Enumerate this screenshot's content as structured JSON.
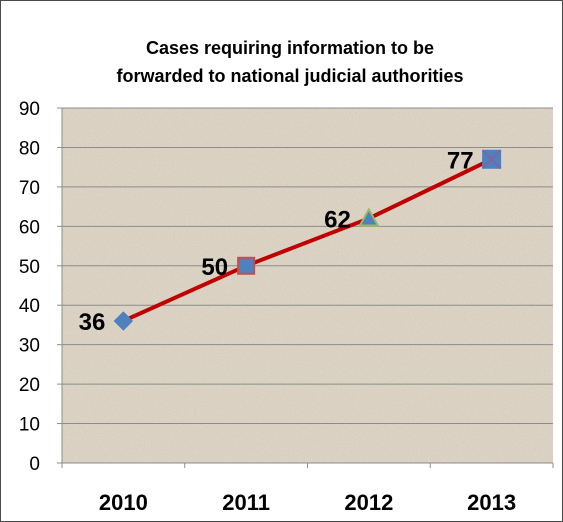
{
  "chart_data": {
    "type": "line",
    "title_lines": [
      "Cases requiring information to be",
      "forwarded to national judicial authorities"
    ],
    "categories": [
      "2010",
      "2011",
      "2012",
      "2013"
    ],
    "values": [
      36,
      50,
      62,
      77
    ],
    "data_labels": [
      "36",
      "50",
      "62",
      "77"
    ],
    "markers": [
      "diamond",
      "square",
      "triangle",
      "x-square"
    ],
    "marker_colors": [
      "#4f81bd",
      "#4f81bd",
      "#4f81bd",
      "#4f81bd"
    ],
    "marker_outlines": [
      "#4f81bd",
      "#c0504d",
      "#9bbb59",
      "#8064a2"
    ],
    "line_color": "#c00000",
    "ylim": [
      0,
      90
    ],
    "yticks": [
      "0",
      "10",
      "20",
      "30",
      "40",
      "50",
      "60",
      "70",
      "80",
      "90"
    ],
    "grid": true,
    "plot_background": "#dcd3c4",
    "xlabel": "",
    "ylabel": ""
  }
}
